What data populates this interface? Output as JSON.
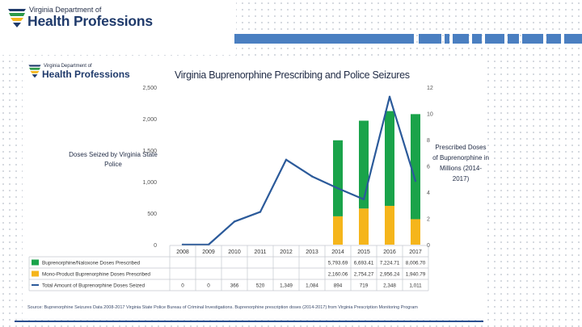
{
  "header": {
    "org_small": "Virginia Department of",
    "org_big": "Health Professions"
  },
  "card": {
    "org_small": "Virginia Department of",
    "org_big": "Health Professions",
    "title": "Virginia Buprenorphine Prescribing and Police Seizures",
    "left_axis_label": "Doses Seized by Virginia State Police",
    "right_axis_label": "Prescribed Doses of Buprenorphine in Millions (2014-2017)",
    "source": "Source: Buprenorphine Seizures Data 2008-2017 Virginia State Police Bureau of Criminal Investigations. Buprenorphine prescription doses (2014-2017) from Virginia Prescription Monitoring Program"
  },
  "colors": {
    "green": "#1aa34a",
    "orange": "#f5b51b",
    "line": "#2b5a9a",
    "strip": "#4a7fc1"
  },
  "chart_data": {
    "type": "bar",
    "title": "Virginia Buprenorphine Prescribing and Police Seizures",
    "categories": [
      "2008",
      "2009",
      "2010",
      "2011",
      "2012",
      "2013",
      "2014",
      "2015",
      "2016",
      "2017"
    ],
    "left_axis": {
      "label": "Doses Seized by Virginia State Police",
      "ylim": [
        0,
        2500
      ],
      "ticks": [
        "0",
        "500",
        "1,000",
        "1,500",
        "2,000",
        "2,500"
      ]
    },
    "right_axis": {
      "label": "Prescribed Doses of Buprenorphine in Millions (2014-2017)",
      "ylim": [
        0,
        12
      ],
      "ticks": [
        "0",
        "2",
        "4",
        "6",
        "8",
        "10",
        "12"
      ]
    },
    "series": [
      {
        "name": "Buprenorphine/Naloxone Doses Prescribed",
        "kind": "stacked-bar",
        "axis": "right",
        "values": [
          null,
          null,
          null,
          null,
          null,
          null,
          5.79369,
          6.69341,
          7.22471,
          8.0067
        ],
        "table_values": [
          "",
          "",
          "",
          "",
          "",
          "",
          "5,793.69",
          "6,693.41",
          "7,224.71",
          "8,006.70"
        ]
      },
      {
        "name": "Mono-Product Buprenorphine Doses Prescribed",
        "kind": "stacked-bar",
        "axis": "right",
        "values": [
          null,
          null,
          null,
          null,
          null,
          null,
          2.16006,
          2.75427,
          2.95624,
          1.94079
        ],
        "table_values": [
          "",
          "",
          "",
          "",
          "",
          "",
          "2,160.06",
          "2,754.27",
          "2,956.24",
          "1,940.79"
        ]
      },
      {
        "name": "Total Amount of Buprenorphine Doses Seized",
        "kind": "line",
        "axis": "left",
        "values": [
          0,
          0,
          366,
          520,
          1349,
          1084,
          894,
          719,
          2348,
          1011
        ],
        "table_values": [
          "0",
          "0",
          "366",
          "520",
          "1,349",
          "1,084",
          "894",
          "719",
          "2,348",
          "1,011"
        ]
      }
    ]
  }
}
